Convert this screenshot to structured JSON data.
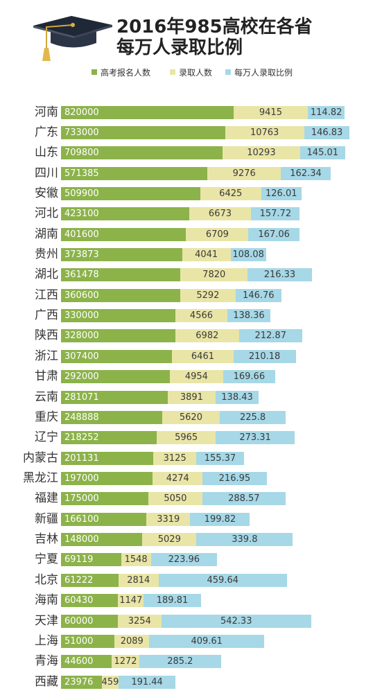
{
  "header": {
    "icon": "graduation-cap-icon"
  },
  "chart_data": {
    "type": "bar",
    "orientation": "horizontal",
    "stacked": true,
    "title": "2016年985高校在各省\n每万人录取比例",
    "legend_position": "top",
    "grid": false,
    "categories": [
      "河南",
      "广东",
      "山东",
      "四川",
      "安徽",
      "河北",
      "湖南",
      "贵州",
      "湖北",
      "江西",
      "广西",
      "陕西",
      "浙江",
      "甘肃",
      "云南",
      "重庆",
      "辽宁",
      "内蒙古",
      "黑龙江",
      "福建",
      "新疆",
      "吉林",
      "宁夏",
      "北京",
      "海南",
      "天津",
      "上海",
      "青海",
      "西藏"
    ],
    "series": [
      {
        "name": "高考报名人数",
        "color": "#8cb24a",
        "values": [
          820000,
          733000,
          709800,
          571385,
          509900,
          423100,
          401600,
          373873,
          361478,
          360600,
          330000,
          328000,
          307400,
          292000,
          281071,
          248888,
          218252,
          201131,
          197000,
          175000,
          166100,
          148000,
          69119,
          61222,
          60430,
          60000,
          51000,
          44600,
          23976
        ]
      },
      {
        "name": "录取人数",
        "color": "#e9e5a7",
        "values": [
          9415,
          10763,
          10293,
          9276,
          6425,
          6673,
          6709,
          4041,
          7820,
          5292,
          4566,
          6982,
          6461,
          4954,
          3891,
          5620,
          5965,
          3125,
          4274,
          5050,
          3319,
          5029,
          1548,
          2814,
          1147,
          3254,
          2089,
          1272,
          459
        ]
      },
      {
        "name": "每万人录取比例",
        "color": "#a6d8e7",
        "values": [
          114.82,
          146.83,
          145.01,
          162.34,
          126.01,
          157.72,
          167.06,
          108.08,
          216.33,
          146.76,
          138.36,
          212.87,
          210.18,
          169.66,
          138.43,
          225.8,
          273.31,
          155.37,
          216.95,
          288.57,
          199.82,
          339.8,
          223.96,
          459.64,
          189.81,
          542.33,
          409.61,
          285.2,
          191.44
        ]
      }
    ]
  }
}
